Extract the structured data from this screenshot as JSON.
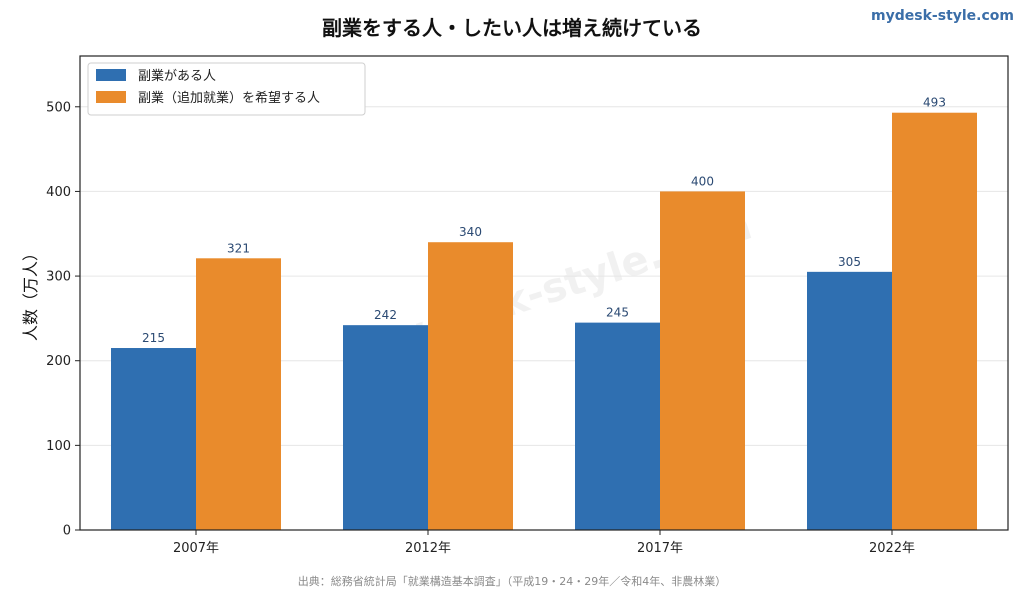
{
  "brand": "mydesk-style.com",
  "source": "出典：総務省統計局「就業構造基本調査」（平成19・24・29年／令和4年、非農林業）",
  "watermark": "mydesk-style.com",
  "colors": {
    "series1": "#2f6fb1",
    "series2": "#e98b2c",
    "grid": "#e6e6e6"
  },
  "chart_data": {
    "type": "bar",
    "title": "副業をする人・したい人は増え続けている",
    "xlabel": "",
    "ylabel": "人数（万人）",
    "ylim": [
      0,
      560
    ],
    "yticks": [
      0,
      100,
      200,
      300,
      400,
      500
    ],
    "categories": [
      "2007年",
      "2012年",
      "2017年",
      "2022年"
    ],
    "grid": true,
    "legend": "top-left",
    "series": [
      {
        "name": "副業がある人",
        "values": [
          215,
          242,
          245,
          305
        ]
      },
      {
        "name": "副業（追加就業）を希望する人",
        "values": [
          321,
          340,
          400,
          493
        ]
      }
    ]
  }
}
